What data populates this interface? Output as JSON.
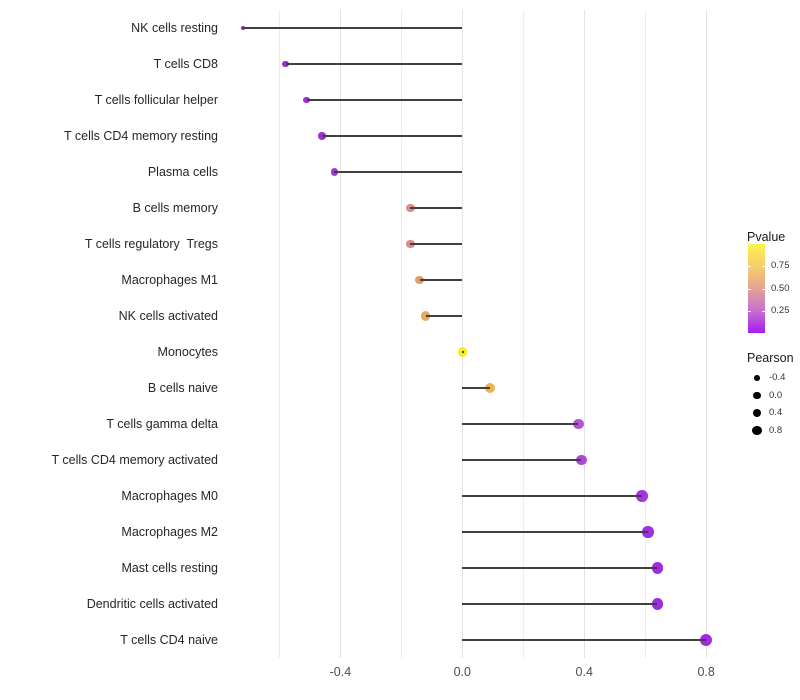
{
  "chart_data": {
    "type": "lollipop",
    "orientation": "horizontal",
    "title": "",
    "xlabel": "",
    "ylabel": "",
    "categories": [
      "NK cells resting",
      "T cells CD8",
      "T cells follicular helper",
      "T cells CD4 memory resting",
      "Plasma cells",
      "B cells memory",
      "T cells regulatory  Tregs",
      "Macrophages M1",
      "NK cells activated",
      "Monocytes",
      "B cells naive",
      "T cells gamma delta",
      "T cells CD4 memory activated",
      "Macrophages M0",
      "Macrophages M2",
      "Mast cells resting",
      "Dendritic cells activated",
      "T cells CD4 naive"
    ],
    "series": [
      {
        "name": "Pearson",
        "values": [
          -0.72,
          -0.58,
          -0.51,
          -0.46,
          -0.42,
          -0.17,
          -0.17,
          -0.14,
          -0.12,
          0.0,
          0.09,
          0.38,
          0.39,
          0.59,
          0.61,
          0.64,
          0.64,
          0.8
        ]
      }
    ],
    "point_colors": [
      "#8E2BCC",
      "#9A2BD6",
      "#9C2ED8",
      "#9E31D9",
      "#A136DB",
      "#DE8B86",
      "#DD8B8B",
      "#E29D6B",
      "#E9A95E",
      "#F8EE1B",
      "#ECB351",
      "#B553D7",
      "#AF46DA",
      "#A637DE",
      "#A230E0",
      "#A02CE1",
      "#9F2BE1",
      "#A22BE2"
    ],
    "stem_color": "#404040",
    "background": "#FFFFFF",
    "xlim": [
      -0.795,
      0.875
    ],
    "x_ticks": {
      "values": [
        -0.4,
        0.0,
        0.4,
        0.8
      ],
      "labels": [
        "-0.4",
        "0.0",
        "0.4",
        "0.8"
      ]
    },
    "x_minor_gridlines": [
      -0.6,
      -0.2,
      0.2,
      0.6
    ],
    "grid": "vertical-only",
    "legend_position": "right",
    "legends": {
      "color": {
        "title": "Pvalue",
        "tick_labels": [
          "0.75",
          "0.50",
          "0.25"
        ],
        "tick_values": [
          0.75,
          0.5,
          0.25
        ],
        "domain": [
          0,
          1
        ],
        "gradient_top_to_bottom": [
          "#FCF151",
          "#F8CE69",
          "#E2A494",
          "#C76FD0",
          "#A81CF2"
        ]
      },
      "size": {
        "title": "Pearson",
        "tick_labels": [
          "-0.4",
          "0.0",
          "0.4",
          "0.8"
        ],
        "tick_values": [
          -0.4,
          0.0,
          0.4,
          0.8
        ],
        "dot_color": "#000000"
      }
    }
  }
}
